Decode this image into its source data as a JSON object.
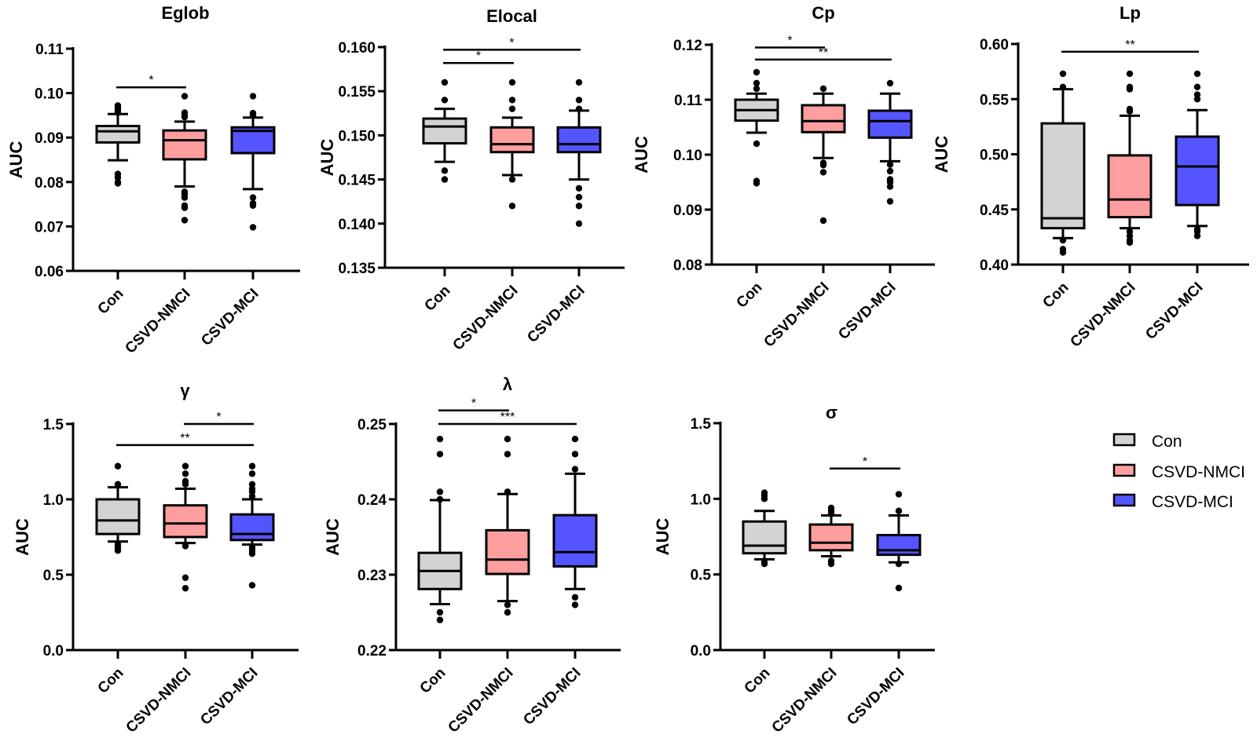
{
  "legend": {
    "items": [
      {
        "label": "Con",
        "color": "#d3d3d3"
      },
      {
        "label": "CSVD-NMCI",
        "color": "#ff9e9e"
      },
      {
        "label": "CSVD-MCI",
        "color": "#5555ff"
      }
    ]
  },
  "chart_data": [
    {
      "type": "box",
      "title": "Eglob",
      "ylabel": "AUC",
      "categories": [
        "Con",
        "CSVD-NMCI",
        "CSVD-MCI"
      ],
      "ylim": [
        0.06,
        0.11
      ],
      "yticks": [
        "0.06",
        "0.07",
        "0.08",
        "0.09",
        "0.10",
        "0.11"
      ],
      "ytick_values": [
        0.06,
        0.07,
        0.08,
        0.09,
        0.1,
        0.11
      ],
      "boxes": [
        {
          "q1": 0.0889,
          "median": 0.0914,
          "q3": 0.0926,
          "whisker_low": 0.0849,
          "whisker_high": 0.0953,
          "outliers": [
            0.0972,
            0.0968,
            0.0964,
            0.096,
            0.0956,
            0.0818,
            0.081,
            0.08,
            0.0797
          ]
        },
        {
          "q1": 0.0851,
          "median": 0.0894,
          "q3": 0.0916,
          "whisker_low": 0.079,
          "whisker_high": 0.0936,
          "outliers": [
            0.0993,
            0.0956,
            0.095,
            0.0946,
            0.0778,
            0.0772,
            0.0765,
            0.0747,
            0.0742,
            0.0714
          ]
        },
        {
          "q1": 0.0865,
          "median": 0.0915,
          "q3": 0.0923,
          "whisker_low": 0.0784,
          "whisker_high": 0.0945,
          "outliers": [
            0.0993,
            0.0955,
            0.0951,
            0.0765,
            0.0752,
            0.0747,
            0.0698
          ]
        }
      ],
      "significance": [
        {
          "from": "Con",
          "to": "CSVD-NMCI",
          "label": "*",
          "y": 0.1013
        }
      ]
    },
    {
      "type": "box",
      "title": "Elocal",
      "ylabel": "AUC",
      "categories": [
        "Con",
        "CSVD-NMCI",
        "CSVD-MCI"
      ],
      "ylim": [
        0.135,
        0.16
      ],
      "yticks": [
        "0.135",
        "0.140",
        "0.145",
        "0.150",
        "0.155",
        "0.160"
      ],
      "ytick_values": [
        0.135,
        0.14,
        0.145,
        0.15,
        0.155,
        0.16
      ],
      "boxes": [
        {
          "q1": 0.1491,
          "median": 0.151,
          "q3": 0.1519,
          "whisker_low": 0.147,
          "whisker_high": 0.153,
          "outliers": [
            0.156,
            0.154,
            0.146,
            0.145
          ]
        },
        {
          "q1": 0.1481,
          "median": 0.149,
          "q3": 0.1509,
          "whisker_low": 0.1455,
          "whisker_high": 0.152,
          "outliers": [
            0.156,
            0.154,
            0.153,
            0.145,
            0.142
          ]
        },
        {
          "q1": 0.1481,
          "median": 0.149,
          "q3": 0.1509,
          "whisker_low": 0.145,
          "whisker_high": 0.1528,
          "outliers": [
            0.156,
            0.154,
            0.153,
            0.144,
            0.143,
            0.142,
            0.14
          ]
        }
      ],
      "significance": [
        {
          "from": "Con",
          "to": "CSVD-MCI",
          "label": "*",
          "y": 0.1597
        },
        {
          "from": "Con",
          "to": "CSVD-NMCI",
          "label": "*",
          "y": 0.1582
        }
      ]
    },
    {
      "type": "box",
      "title": "Cp",
      "ylabel": "AUC",
      "categories": [
        "Con",
        "CSVD-NMCI",
        "CSVD-MCI"
      ],
      "ylim": [
        0.08,
        0.12
      ],
      "yticks": [
        "0.08",
        "0.09",
        "0.10",
        "0.11",
        "0.12"
      ],
      "ytick_values": [
        0.08,
        0.09,
        0.1,
        0.11,
        0.12
      ],
      "boxes": [
        {
          "q1": 0.1062,
          "median": 0.1081,
          "q3": 0.11,
          "whisker_low": 0.104,
          "whisker_high": 0.1111,
          "outliers": [
            0.115,
            0.113,
            0.112,
            0.102,
            0.0952,
            0.0948
          ]
        },
        {
          "q1": 0.1041,
          "median": 0.1061,
          "q3": 0.109,
          "whisker_low": 0.0994,
          "whisker_high": 0.1111,
          "outliers": [
            0.112,
            0.0985,
            0.0981,
            0.0968,
            0.088
          ]
        },
        {
          "q1": 0.1031,
          "median": 0.1061,
          "q3": 0.108,
          "whisker_low": 0.0988,
          "whisker_high": 0.1111,
          "outliers": [
            0.113,
            0.0982,
            0.097,
            0.0955,
            0.095,
            0.0942,
            0.0915
          ]
        }
      ],
      "significance": [
        {
          "from": "Con",
          "to": "CSVD-NMCI",
          "label": "*",
          "y": 0.1195
        },
        {
          "from": "Con",
          "to": "CSVD-MCI",
          "label": "**",
          "y": 0.1173
        }
      ]
    },
    {
      "type": "box",
      "title": "Lp",
      "ylabel": "AUC",
      "categories": [
        "Con",
        "CSVD-NMCI",
        "CSVD-MCI"
      ],
      "ylim": [
        0.4,
        0.6
      ],
      "yticks": [
        "0.40",
        "0.45",
        "0.50",
        "0.55",
        "0.60"
      ],
      "ytick_values": [
        0.4,
        0.45,
        0.5,
        0.55,
        0.6
      ],
      "boxes": [
        {
          "q1": 0.433,
          "median": 0.442,
          "q3": 0.528,
          "whisker_low": 0.424,
          "whisker_high": 0.559,
          "outliers": [
            0.573,
            0.561,
            0.422,
            0.414,
            0.411
          ]
        },
        {
          "q1": 0.443,
          "median": 0.459,
          "q3": 0.499,
          "whisker_low": 0.433,
          "whisker_high": 0.535,
          "outliers": [
            0.573,
            0.561,
            0.559,
            0.541,
            0.539,
            0.43,
            0.426,
            0.422,
            0.42
          ]
        },
        {
          "q1": 0.454,
          "median": 0.489,
          "q3": 0.516,
          "whisker_low": 0.435,
          "whisker_high": 0.54,
          "outliers": [
            0.573,
            0.561,
            0.554,
            0.55,
            0.432,
            0.43,
            0.426
          ]
        }
      ],
      "significance": [
        {
          "from": "Con",
          "to": "CSVD-MCI",
          "label": "**",
          "y": 0.593
        }
      ]
    },
    {
      "type": "box",
      "title": "γ",
      "ylabel": "AUC",
      "categories": [
        "Con",
        "CSVD-NMCI",
        "CSVD-MCI"
      ],
      "ylim": [
        0.0,
        1.5
      ],
      "yticks": [
        "0.0",
        "0.5",
        "1.0",
        "1.5"
      ],
      "ytick_values": [
        0.0,
        0.5,
        1.0,
        1.5
      ],
      "boxes": [
        {
          "q1": 0.77,
          "median": 0.86,
          "q3": 1.0,
          "whisker_low": 0.72,
          "whisker_high": 1.08,
          "outliers": [
            1.22,
            1.1,
            0.7,
            0.68,
            0.66
          ]
        },
        {
          "q1": 0.75,
          "median": 0.84,
          "q3": 0.96,
          "whisker_low": 0.71,
          "whisker_high": 1.07,
          "outliers": [
            1.22,
            1.17,
            1.12,
            1.1,
            0.69,
            0.48,
            0.41
          ]
        },
        {
          "q1": 0.73,
          "median": 0.77,
          "q3": 0.9,
          "whisker_low": 0.7,
          "whisker_high": 1.0,
          "outliers": [
            1.22,
            1.17,
            1.1,
            1.07,
            1.05,
            1.02,
            0.68,
            0.66,
            0.64,
            0.43
          ]
        }
      ],
      "significance": [
        {
          "from": "CSVD-NMCI",
          "to": "CSVD-MCI",
          "label": "*",
          "y": 1.5
        },
        {
          "from": "Con",
          "to": "CSVD-MCI",
          "label": "**",
          "y": 1.36
        }
      ]
    },
    {
      "type": "box",
      "title": "λ",
      "ylabel": "AUC",
      "categories": [
        "Con",
        "CSVD-NMCI",
        "CSVD-MCI"
      ],
      "ylim": [
        0.22,
        0.25
      ],
      "yticks": [
        "0.22",
        "0.23",
        "0.24",
        "0.25"
      ],
      "ytick_values": [
        0.22,
        0.23,
        0.24,
        0.25
      ],
      "boxes": [
        {
          "q1": 0.2281,
          "median": 0.2305,
          "q3": 0.2329,
          "whisker_low": 0.2261,
          "whisker_high": 0.2399,
          "outliers": [
            0.248,
            0.246,
            0.241,
            0.24,
            0.225,
            0.224
          ]
        },
        {
          "q1": 0.2301,
          "median": 0.232,
          "q3": 0.2359,
          "whisker_low": 0.2265,
          "whisker_high": 0.2407,
          "outliers": [
            0.248,
            0.246,
            0.241,
            0.226,
            0.225
          ]
        },
        {
          "q1": 0.2311,
          "median": 0.233,
          "q3": 0.2379,
          "whisker_low": 0.2281,
          "whisker_high": 0.2434,
          "outliers": [
            0.248,
            0.246,
            0.244,
            0.227,
            0.226
          ]
        }
      ],
      "significance": [
        {
          "from": "Con",
          "to": "CSVD-NMCI",
          "label": "*",
          "y": 0.2518
        },
        {
          "from": "Con",
          "to": "CSVD-MCI",
          "label": "***",
          "y": 0.25
        }
      ]
    },
    {
      "type": "box",
      "title": "σ",
      "ylabel": "AUC",
      "categories": [
        "Con",
        "CSVD-NMCI",
        "CSVD-MCI"
      ],
      "ylim": [
        0.0,
        1.5
      ],
      "yticks": [
        "0.0",
        "0.5",
        "1.0",
        "1.5"
      ],
      "ytick_values": [
        0.0,
        0.5,
        1.0,
        1.5
      ],
      "boxes": [
        {
          "q1": 0.64,
          "median": 0.69,
          "q3": 0.85,
          "whisker_low": 0.6,
          "whisker_high": 0.92,
          "outliers": [
            1.04,
            1.02,
            1.0,
            0.58,
            0.57
          ]
        },
        {
          "q1": 0.66,
          "median": 0.71,
          "q3": 0.83,
          "whisker_low": 0.62,
          "whisker_high": 0.89,
          "outliers": [
            0.94,
            0.92,
            0.9,
            0.59,
            0.57
          ]
        },
        {
          "q1": 0.63,
          "median": 0.66,
          "q3": 0.76,
          "whisker_low": 0.58,
          "whisker_high": 0.89,
          "outliers": [
            1.03,
            0.92,
            0.57,
            0.41
          ]
        }
      ],
      "significance": [
        {
          "from": "CSVD-NMCI",
          "to": "CSVD-MCI",
          "label": "*",
          "y": 1.2
        }
      ]
    }
  ]
}
